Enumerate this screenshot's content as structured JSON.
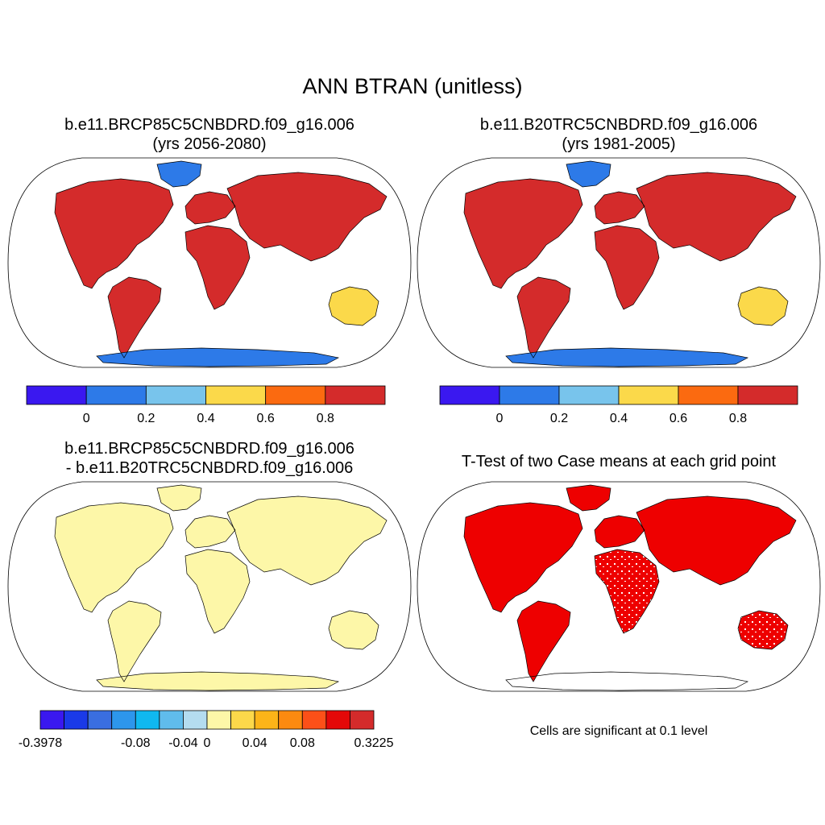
{
  "title": "ANN BTRAN (unitless)",
  "panels": [
    {
      "line1": "b.e11.BRCP85C5CNBDRD.f09_g16.006",
      "line2": "(yrs 2056-2080)",
      "type": "absolute"
    },
    {
      "line1": "b.e11.B20TRC5CNBDRD.f09_g16.006",
      "line2": "(yrs 1981-2005)",
      "type": "absolute"
    },
    {
      "line1": "b.e11.BRCP85C5CNBDRD.f09_g16.006",
      "line2": "- b.e11.B20TRC5CNBDRD.f09_g16.006",
      "type": "difference"
    },
    {
      "line1": "T-Test of two Case means at each grid point",
      "line2": "",
      "type": "significance"
    }
  ],
  "colorbar_abs": {
    "colors": [
      "#3a18f0",
      "#2d7ae8",
      "#78c4ec",
      "#fbd94a",
      "#fb6a10",
      "#d42b2b"
    ],
    "labels": [
      "0",
      "0.2",
      "0.4",
      "0.6",
      "0.8"
    ]
  },
  "colorbar_diff": {
    "colors": [
      "#3a18f0",
      "#1a3ae8",
      "#3a6ee0",
      "#2d96ec",
      "#10b8f0",
      "#60bcec",
      "#b4dcf0",
      "#fdf7a8",
      "#fcd84a",
      "#fcb418",
      "#fc8a10",
      "#fc5018",
      "#e40808",
      "#d42b2b"
    ],
    "labels": [
      "-0.3978",
      "-0.08",
      "-0.04",
      "0",
      "0.04",
      "0.08",
      "0.3225"
    ]
  },
  "significance_note": "Cells are significant at 0.1 level",
  "colors": {
    "ocean": "#ffffff",
    "land_high": "#d42b2b",
    "land_orange": "#fb6a10",
    "land_yellow": "#fbd94a",
    "land_light_blue": "#78c4ec",
    "land_blue": "#2d7ae8",
    "diff_neutral": "#fdf7a8",
    "significant": "#ee0000"
  }
}
